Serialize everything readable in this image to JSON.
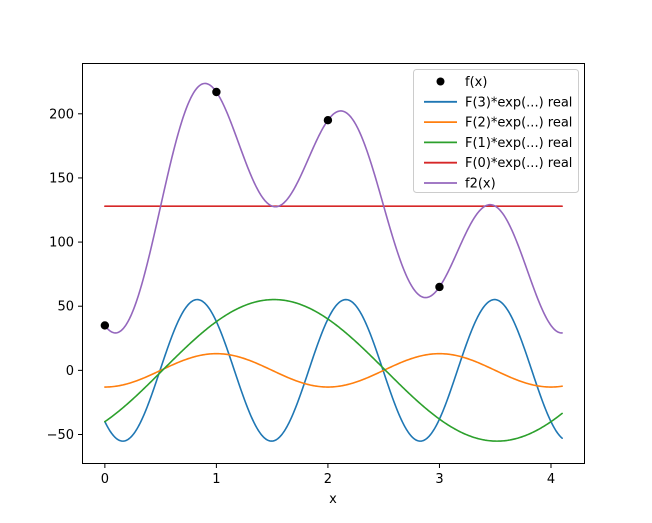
{
  "figure": {
    "background": "#ffffff",
    "spine_color": "#000000"
  },
  "chart_data": {
    "type": "line",
    "title": "",
    "xlabel": "x",
    "ylabel": "",
    "grid": false,
    "legend_position": "upper right",
    "xlim": [
      -0.205,
      4.305
    ],
    "ylim": [
      -73,
      239.6
    ],
    "x_ticks": [
      "0",
      "1",
      "2",
      "3",
      "4"
    ],
    "x_tick_values": [
      0,
      1,
      2,
      3,
      4
    ],
    "y_ticks": [
      "−50",
      "0",
      "50",
      "100",
      "150",
      "200"
    ],
    "y_tick_values": [
      -50,
      0,
      50,
      100,
      150,
      200
    ],
    "curve_x_range": [
      0,
      4.1
    ],
    "scatter": {
      "label": "f(x)",
      "marker": "circle",
      "color": "#000000",
      "points": [
        [
          0,
          35
        ],
        [
          1,
          217
        ],
        [
          2,
          195
        ],
        [
          3,
          65
        ]
      ]
    },
    "series": [
      {
        "label": "F(3)*exp(...) real",
        "color": "#1f77b4",
        "offset": 0,
        "terms": [
          {
            "cos": -40,
            "sin": -38,
            "freq_pi": 1.5
          }
        ]
      },
      {
        "label": "F(2)*exp(...) real",
        "color": "#ff7f0e",
        "offset": 0,
        "terms": [
          {
            "cos": -13,
            "sin": 0,
            "freq_pi": 1.0
          }
        ]
      },
      {
        "label": "F(1)*exp(...) real",
        "color": "#2ca02c",
        "offset": 0,
        "terms": [
          {
            "cos": -40,
            "sin": 38,
            "freq_pi": 0.5
          }
        ]
      },
      {
        "label": "F(0)*exp(...) real",
        "color": "#d62728",
        "offset": 128,
        "terms": []
      },
      {
        "label": "f2(x)",
        "color": "#9467bd",
        "offset": 128,
        "terms": [
          {
            "cos": -40,
            "sin": 38,
            "freq_pi": 0.5
          },
          {
            "cos": -13,
            "sin": 0,
            "freq_pi": 1.0
          },
          {
            "cos": -40,
            "sin": -38,
            "freq_pi": 1.5
          }
        ]
      }
    ],
    "legend": [
      {
        "label": "f(x)",
        "color": "#000000",
        "marker": "dot"
      },
      {
        "label": "F(3)*exp(...) real",
        "color": "#1f77b4",
        "marker": "line"
      },
      {
        "label": "F(2)*exp(...) real",
        "color": "#ff7f0e",
        "marker": "line"
      },
      {
        "label": "F(1)*exp(...) real",
        "color": "#2ca02c",
        "marker": "line"
      },
      {
        "label": "F(0)*exp(...) real",
        "color": "#d62728",
        "marker": "line"
      },
      {
        "label": "f2(x)",
        "color": "#9467bd",
        "marker": "line"
      }
    ],
    "legend_border_color": "#cccccc"
  }
}
